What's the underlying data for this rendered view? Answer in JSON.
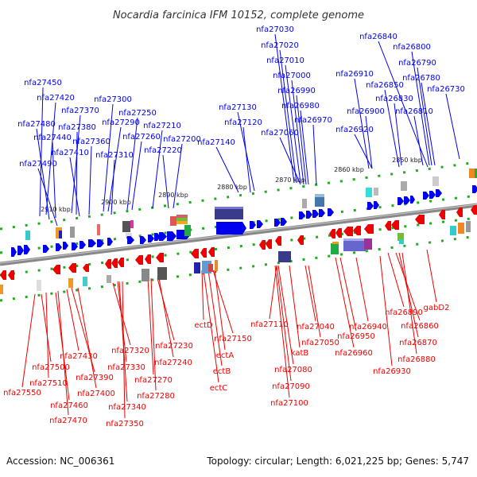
{
  "title": "Nocardia farcinica IFM 10152, complete genome",
  "footer": {
    "accession": "Accession: NC_006361",
    "summary": "Topology: circular; Length: 6,021,225 bp; Genes: 5,747"
  },
  "colors": {
    "forward": "#0000ee",
    "reverse": "#ee0000",
    "backbone": "#888888",
    "ticks": "#22aa22"
  },
  "ticks": [
    "2910 kbp",
    "2900 kbp",
    "2890 kbp",
    "2880 kbp",
    "2870 kbp",
    "2860 kbp",
    "2850 kbp"
  ],
  "top_labels": [
    "nfa27450",
    "nfa27420",
    "nfa27480",
    "nfa27440",
    "nfa27490",
    "nfa27370",
    "nfa27380",
    "nfa27410",
    "nfa27360",
    "nfa27300",
    "nfa27290",
    "nfa27310",
    "nfa27250",
    "nfa27260",
    "nfa27210",
    "nfa27200",
    "nfa27220",
    "nfa27130",
    "nfa27120",
    "nfa27140",
    "nfa27030",
    "nfa27020",
    "nfa27010",
    "nfa27000",
    "nfa26990",
    "nfa26980",
    "nfa26970",
    "nfa27060",
    "nfa26910",
    "nfa26900",
    "nfa26920",
    "nfa26840",
    "nfa26800",
    "nfa26850",
    "nfa26790",
    "nfa26780",
    "nfa26830",
    "nfa26810",
    "nfa26730"
  ],
  "bottom_labels": [
    "nfa27550",
    "nfa27500",
    "nfa27510",
    "nfa27460",
    "nfa27470",
    "nfa27430",
    "nfa27390",
    "nfa27400",
    "nfa27320",
    "nfa27330",
    "nfa27340",
    "nfa27350",
    "nfa27230",
    "nfa27240",
    "nfa27270",
    "nfa27280",
    "ectD",
    "ectA",
    "ectB",
    "ectC",
    "nfa27150",
    "nfa27110",
    "nfa27080",
    "nfa27090",
    "nfa27100",
    "katB",
    "nfa27040",
    "nfa27050",
    "nfa26940",
    "nfa26950",
    "nfa26960",
    "nfa26930",
    "nfa26890",
    "nfa26860",
    "nfa26870",
    "nfa26880",
    "gabD2"
  ]
}
